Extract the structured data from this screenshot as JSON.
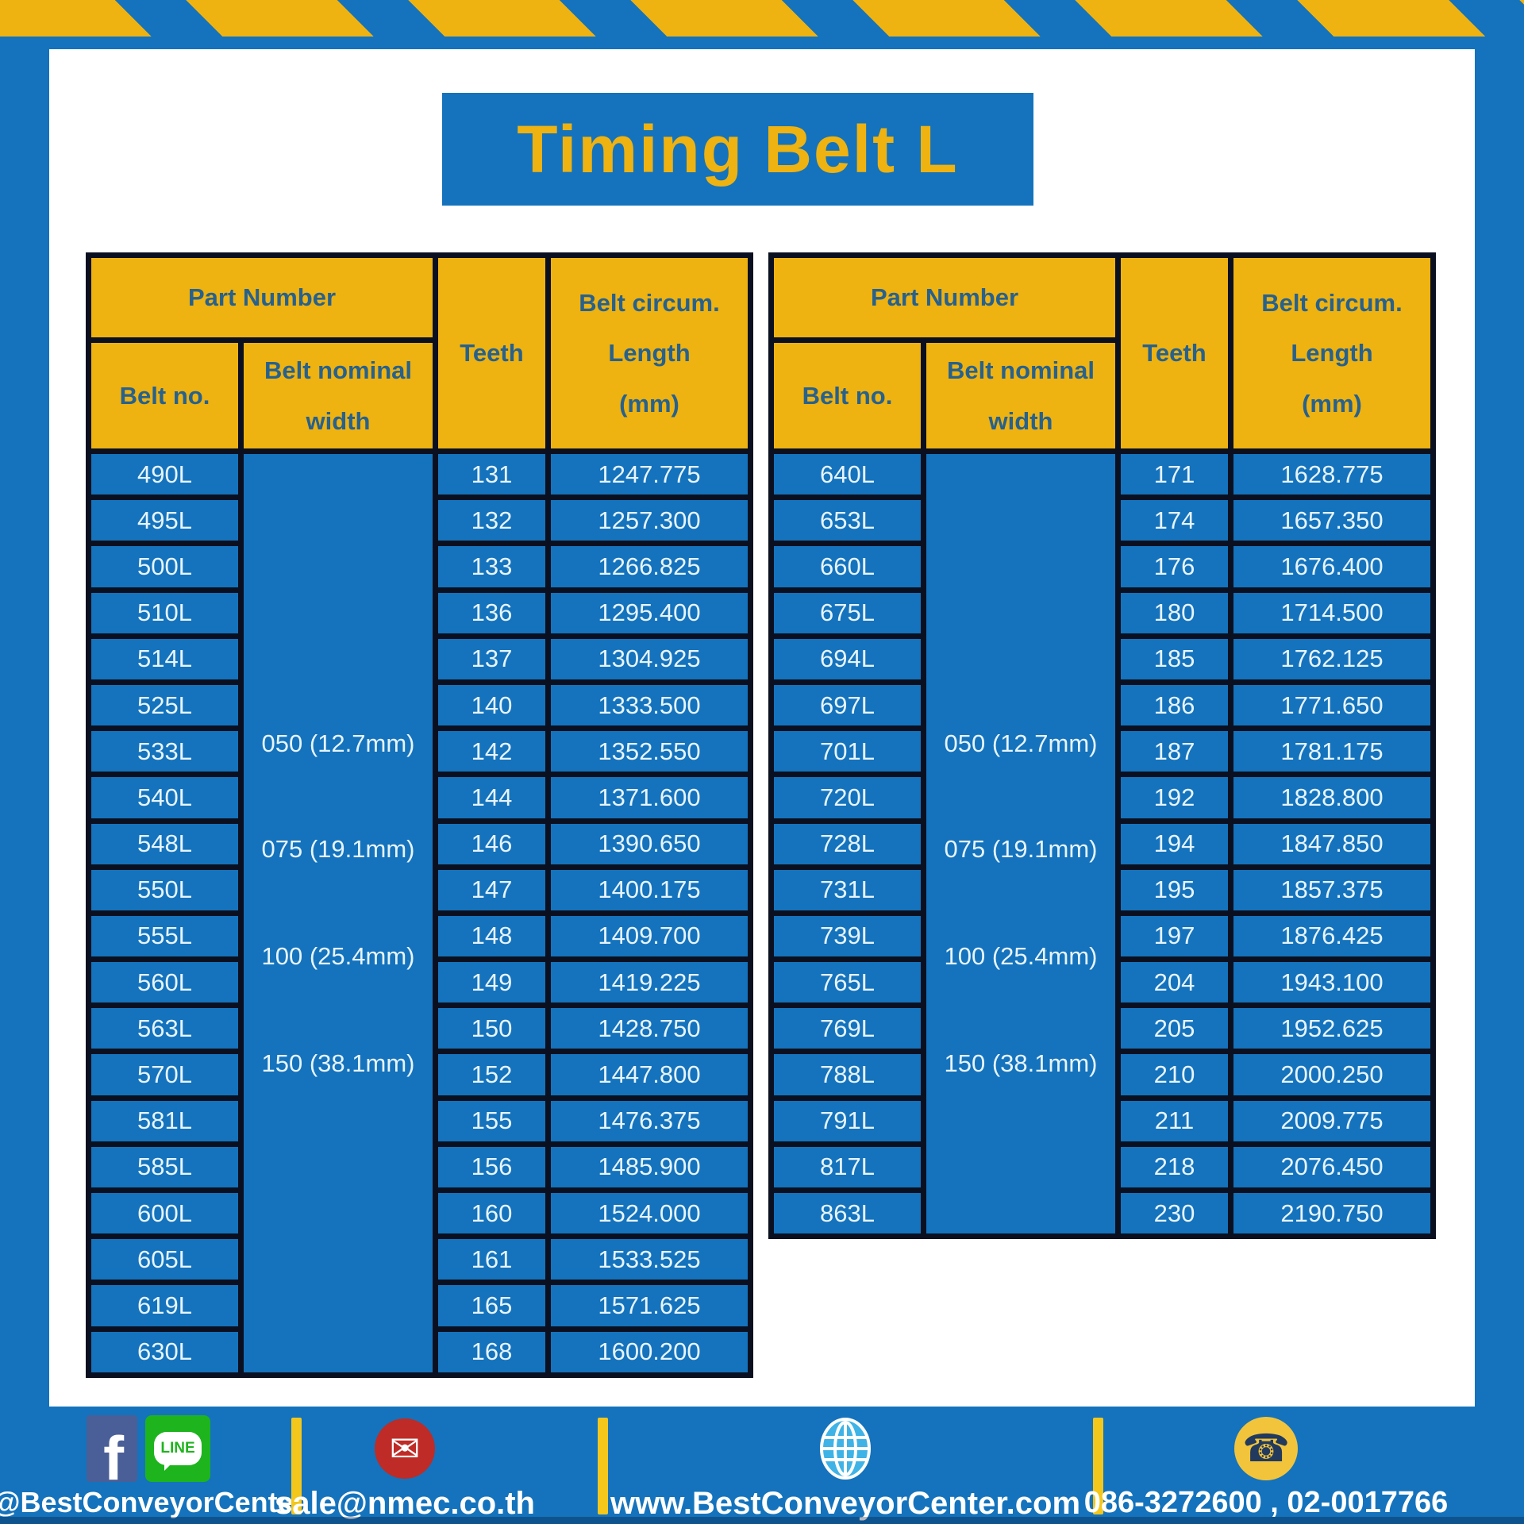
{
  "title": "Timing Belt L",
  "table_header": {
    "part_number": "Part Number",
    "belt_no": "Belt no.",
    "belt_nominal_width": [
      "Belt nominal",
      "width"
    ],
    "teeth": "Teeth",
    "belt_circum": [
      "Belt circum.",
      "Length",
      "(mm)"
    ]
  },
  "width_labels": [
    "050 (12.7mm)",
    "075 (19.1mm)",
    "100 (25.4mm)",
    "150 (38.1mm)"
  ],
  "tables": [
    {
      "rows": [
        {
          "belt_no": "490L",
          "teeth": "131",
          "length": "1247.775"
        },
        {
          "belt_no": "495L",
          "teeth": "132",
          "length": "1257.300"
        },
        {
          "belt_no": "500L",
          "teeth": "133",
          "length": "1266.825"
        },
        {
          "belt_no": "510L",
          "teeth": "136",
          "length": "1295.400"
        },
        {
          "belt_no": "514L",
          "teeth": "137",
          "length": "1304.925"
        },
        {
          "belt_no": "525L",
          "teeth": "140",
          "length": "1333.500"
        },
        {
          "belt_no": "533L",
          "teeth": "142",
          "length": "1352.550"
        },
        {
          "belt_no": "540L",
          "teeth": "144",
          "length": "1371.600"
        },
        {
          "belt_no": "548L",
          "teeth": "146",
          "length": "1390.650"
        },
        {
          "belt_no": "550L",
          "teeth": "147",
          "length": "1400.175"
        },
        {
          "belt_no": "555L",
          "teeth": "148",
          "length": "1409.700"
        },
        {
          "belt_no": "560L",
          "teeth": "149",
          "length": "1419.225"
        },
        {
          "belt_no": "563L",
          "teeth": "150",
          "length": "1428.750"
        },
        {
          "belt_no": "570L",
          "teeth": "152",
          "length": "1447.800"
        },
        {
          "belt_no": "581L",
          "teeth": "155",
          "length": "1476.375"
        },
        {
          "belt_no": "585L",
          "teeth": "156",
          "length": "1485.900"
        },
        {
          "belt_no": "600L",
          "teeth": "160",
          "length": "1524.000"
        },
        {
          "belt_no": "605L",
          "teeth": "161",
          "length": "1533.525"
        },
        {
          "belt_no": "619L",
          "teeth": "165",
          "length": "1571.625"
        },
        {
          "belt_no": "630L",
          "teeth": "168",
          "length": "1600.200"
        }
      ]
    },
    {
      "rows": [
        {
          "belt_no": "640L",
          "teeth": "171",
          "length": "1628.775"
        },
        {
          "belt_no": "653L",
          "teeth": "174",
          "length": "1657.350"
        },
        {
          "belt_no": "660L",
          "teeth": "176",
          "length": "1676.400"
        },
        {
          "belt_no": "675L",
          "teeth": "180",
          "length": "1714.500"
        },
        {
          "belt_no": "694L",
          "teeth": "185",
          "length": "1762.125"
        },
        {
          "belt_no": "697L",
          "teeth": "186",
          "length": "1771.650"
        },
        {
          "belt_no": "701L",
          "teeth": "187",
          "length": "1781.175"
        },
        {
          "belt_no": "720L",
          "teeth": "192",
          "length": "1828.800"
        },
        {
          "belt_no": "728L",
          "teeth": "194",
          "length": "1847.850"
        },
        {
          "belt_no": "731L",
          "teeth": "195",
          "length": "1857.375"
        },
        {
          "belt_no": "739L",
          "teeth": "197",
          "length": "1876.425"
        },
        {
          "belt_no": "765L",
          "teeth": "204",
          "length": "1943.100"
        },
        {
          "belt_no": "769L",
          "teeth": "205",
          "length": "1952.625"
        },
        {
          "belt_no": "788L",
          "teeth": "210",
          "length": "2000.250"
        },
        {
          "belt_no": "791L",
          "teeth": "211",
          "length": "2009.775"
        },
        {
          "belt_no": "817L",
          "teeth": "218",
          "length": "2076.450"
        },
        {
          "belt_no": "863L",
          "teeth": "230",
          "length": "2190.750"
        }
      ]
    }
  ],
  "footer": {
    "line_label": "LINE",
    "facebook_line_handle": "@BestConveyorCenter",
    "email": "sale@nmec.co.th",
    "website": "www.BestConveyorCenter.com",
    "phones": "086-3272600 , 02-0017766"
  },
  "colors": {
    "blue": "#1473bc",
    "yellow": "#eeb211",
    "border": "#0b1020",
    "htext": "#27618d",
    "ctext": "#e8f4fd",
    "fb": "#4a5f98",
    "line": "#1eb41e",
    "mail": "#bf2b26",
    "globe": "#3fb3e6",
    "phone": "#f2c43c",
    "divider": "#f3c71c"
  }
}
